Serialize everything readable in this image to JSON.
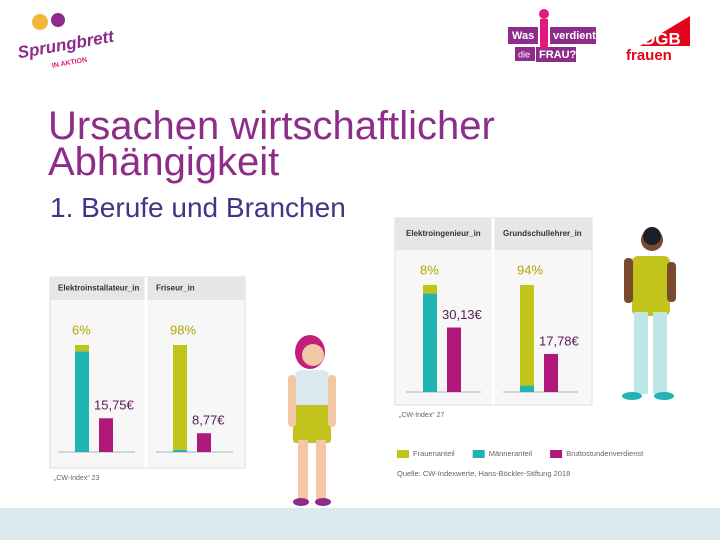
{
  "header": {
    "logos": [
      "Sprungbrett",
      "IN AKTION",
      "Was",
      "verdient",
      "die",
      "FRAU?",
      "DGB",
      "frauen"
    ]
  },
  "title": "Ursachen wirtschaftlicher Abhängigkeit",
  "subtitle": "1. Berufe und Branchen",
  "chart_data": [
    {
      "type": "bar",
      "categories": [
        "Elektroinstallateur_in",
        "Friseur_in"
      ],
      "series": [
        {
          "color": "#c2c41c",
          "values": [
            6,
            98
          ],
          "value_labels": [
            "6%",
            "98%"
          ]
        },
        {
          "color": "#22b3b3",
          "values": [
            94,
            2
          ]
        },
        {
          "color": "#b0187c",
          "values": [
            15.75,
            8.77
          ],
          "value_labels": [
            "15,75€",
            "8,77€"
          ],
          "axis": "y2"
        }
      ],
      "ylim": [
        0,
        100
      ],
      "y2lim": [
        0,
        50
      ],
      "note": "„CW-Index“ 23"
    },
    {
      "type": "bar",
      "categories": [
        "Elektroingenieur_in",
        "Grundschullehrer_in"
      ],
      "series": [
        {
          "name": "Frauenanteil",
          "color": "#c2c41c",
          "values": [
            8,
            94
          ],
          "value_labels": [
            "8%",
            "94%"
          ]
        },
        {
          "name": "Männeranteil",
          "color": "#22b3b3",
          "values": [
            92,
            6
          ]
        },
        {
          "name": "Bruttostundenverdienst",
          "color": "#b0187c",
          "values": [
            30.13,
            17.78
          ],
          "value_labels": [
            "30,13€",
            "17,78€"
          ],
          "axis": "y2"
        }
      ],
      "ylim": [
        0,
        100
      ],
      "y2lim": [
        0,
        50
      ],
      "note": "„CW-Index“ 27",
      "source": "Quelle: CW-Indexwerte, Hans-Böckler-Stiftung 2018"
    }
  ]
}
